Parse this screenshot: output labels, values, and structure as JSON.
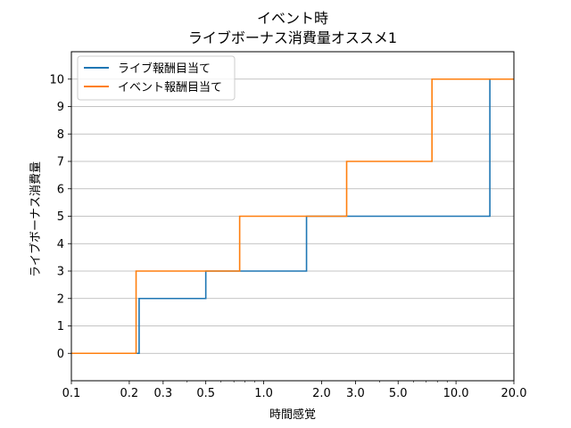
{
  "chart_data": {
    "type": "line",
    "step": "post",
    "title_line1": "イベント時",
    "title_line2": "ライブボーナス消費量オススメ1",
    "xlabel": "時間感覚",
    "ylabel": "ライブボーナス消費量",
    "xscale": "log",
    "xlim": [
      0.1,
      20.0
    ],
    "ylim": [
      -1,
      11
    ],
    "xticks": [
      0.1,
      0.2,
      0.3,
      0.5,
      1.0,
      2.0,
      3.0,
      5.0,
      10.0,
      20.0
    ],
    "xtick_labels": [
      "0.1",
      "0.2",
      "0.3",
      "0.5",
      "1.0",
      "2.0",
      "3.0",
      "5.0",
      "10.0",
      "20.0"
    ],
    "yticks": [
      0,
      1,
      2,
      3,
      4,
      5,
      6,
      7,
      8,
      9,
      10
    ],
    "ytick_labels": [
      "0",
      "1",
      "2",
      "3",
      "4",
      "5",
      "6",
      "7",
      "8",
      "9",
      "10"
    ],
    "grid": "y",
    "legend_position": "top-left",
    "series": [
      {
        "name": "ライブ報酬目当て",
        "color": "#1f77b4",
        "x": [
          0.1,
          0.225,
          0.5,
          1.67,
          15.0,
          20.0
        ],
        "y": [
          0,
          2,
          3,
          5,
          10,
          10
        ]
      },
      {
        "name": "イベント報酬目当て",
        "color": "#ff7f0e",
        "x": [
          0.1,
          0.217,
          0.75,
          2.7,
          7.5,
          20.0
        ],
        "y": [
          0,
          3,
          5,
          7,
          10,
          10
        ]
      }
    ]
  }
}
